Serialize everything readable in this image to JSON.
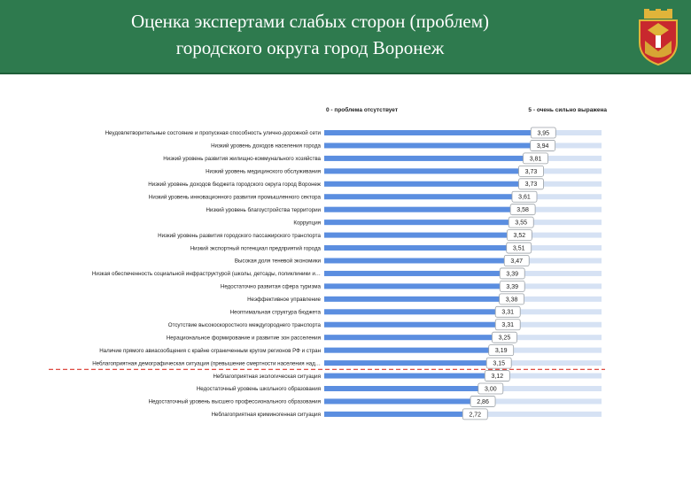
{
  "header": {
    "title": "Оценка экспертами слабых сторон (проблем)\nгородского округа город Воронеж",
    "background": "#2e7a4e"
  },
  "chart_data": {
    "type": "bar",
    "orientation": "horizontal",
    "scale_min_label": "0 - проблема отсутствует",
    "scale_max_label": "5 - очень сильно выражена",
    "xlim": [
      0,
      5
    ],
    "bar_color": "#5b8ee0",
    "track_color": "#d6e2f4",
    "threshold_line": {
      "after_index": 18,
      "color": "#d9342b",
      "style": "dashed"
    },
    "categories": [
      "Неудовлетворительные состояние и пропускная способность улично-дорожной сети",
      "Низкий уровень доходов населения города",
      "Низкий уровень развития жилищно-коммунального хозяйства",
      "Низкий уровень медицинского обслуживания",
      "Низкий уровень доходов бюджета городского округа город Воронеж",
      "Низкий уровень инновационного развития промышленного сектора",
      "Низкий уровень благоустройства территории",
      "Коррупция",
      "Низкий уровень развития городского пассажирского транспорта",
      "Низкий экспортный потенциал предприятий города",
      "Высокая доля теневой экономики",
      "Низкая обеспеченность социальной инфраструктурой (школы, детсады, поликлиники и…",
      "Недостаточно развитая сфера туризма",
      "Неэффективное управление",
      "Неоптимальная структура бюджета",
      "Отсутствие высокоскоростного междугороднего транспорта",
      "Нерациональное формирование и развитие зон расселения",
      "Наличие прямого авиасообщения с крайне ограниченным кругом регионов РФ и стран",
      "Неблагоприятная демографическая ситуация (превышение смертности населения над…",
      "Неблагоприятная экологическая ситуация",
      "Недостаточный уровень школьного образования",
      "Недостаточный уровень высшего профессионального образования",
      "Неблагоприятная криминогенная ситуация"
    ],
    "values": [
      3.95,
      3.94,
      3.81,
      3.73,
      3.73,
      3.61,
      3.58,
      3.55,
      3.52,
      3.51,
      3.47,
      3.39,
      3.39,
      3.38,
      3.31,
      3.31,
      3.25,
      3.19,
      3.15,
      3.12,
      3.0,
      2.86,
      2.72
    ],
    "value_labels": [
      "3,95",
      "3,94",
      "3,81",
      "3,73",
      "3,73",
      "3,61",
      "3,58",
      "3,55",
      "3,52",
      "3,51",
      "3,47",
      "3,39",
      "3,39",
      "3,38",
      "3,31",
      "3,31",
      "3,25",
      "3,19",
      "3,15",
      "3,12",
      "3,00",
      "2,86",
      "2,72"
    ]
  }
}
